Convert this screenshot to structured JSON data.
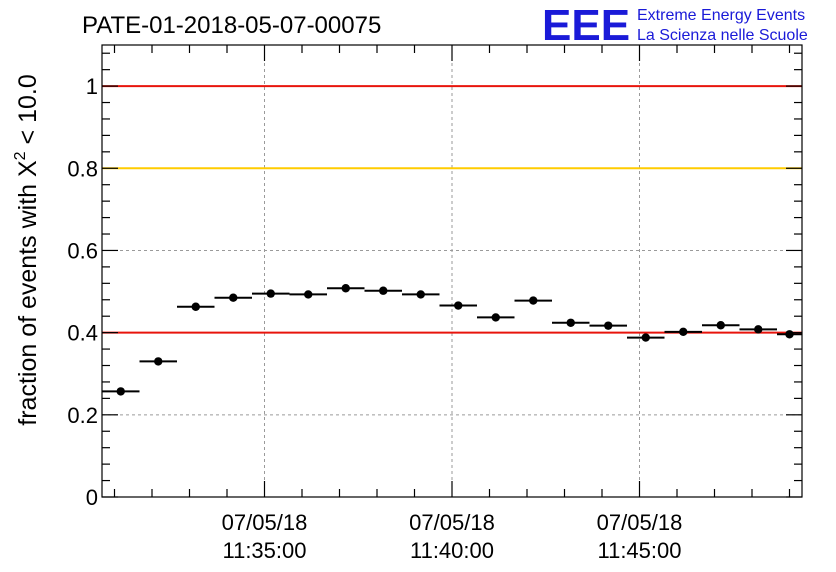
{
  "header": {
    "title": "PATE-01-2018-05-07-00075",
    "logo_letters": "EEE",
    "logo_line1": "Extreme Energy Events",
    "logo_line2": "La Scienza nelle Scuole"
  },
  "colors": {
    "accent_red": "#e8140c",
    "accent_gold": "#ffcc00",
    "logo_blue": "#1a1ad8",
    "marker": "#000000"
  },
  "chart_data": {
    "type": "scatter",
    "title": "PATE-01-2018-05-07-00075",
    "ylabel": "fraction of events with X",
    "ylabel_sup": "2",
    "ylabel_suffix": " < 10.0",
    "ylim": [
      0,
      1.1
    ],
    "yticks": [
      {
        "value": 0,
        "label": "0"
      },
      {
        "value": 0.2,
        "label": "0.2"
      },
      {
        "value": 0.4,
        "label": "0.4"
      },
      {
        "value": 0.6,
        "label": "0.6"
      },
      {
        "value": 0.8,
        "label": "0.8"
      },
      {
        "value": 1,
        "label": "1"
      }
    ],
    "xlim": [
      "11:30:40",
      "11:49:20"
    ],
    "xticks": [
      {
        "time": "11:35:00",
        "date_label": "07/05/18",
        "time_label": "11:35:00"
      },
      {
        "time": "11:40:00",
        "date_label": "07/05/18",
        "time_label": "11:40:00"
      },
      {
        "time": "11:45:00",
        "date_label": "07/05/18",
        "time_label": "11:45:00"
      }
    ],
    "grid": true,
    "reference_lines": [
      {
        "y": 1.0,
        "color": "#e8140c"
      },
      {
        "y": 0.8,
        "color": "#ffcc00"
      },
      {
        "y": 0.4,
        "color": "#e8140c"
      }
    ],
    "points": [
      {
        "x_start": "11:30:40",
        "x_end": "11:31:40",
        "y": 0.257
      },
      {
        "x_start": "11:31:40",
        "x_end": "11:32:40",
        "y": 0.33
      },
      {
        "x_start": "11:32:40",
        "x_end": "11:33:40",
        "y": 0.463
      },
      {
        "x_start": "11:33:40",
        "x_end": "11:34:40",
        "y": 0.485
      },
      {
        "x_start": "11:34:40",
        "x_end": "11:35:40",
        "y": 0.495
      },
      {
        "x_start": "11:35:40",
        "x_end": "11:36:40",
        "y": 0.493
      },
      {
        "x_start": "11:36:40",
        "x_end": "11:37:40",
        "y": 0.508
      },
      {
        "x_start": "11:37:40",
        "x_end": "11:38:40",
        "y": 0.502
      },
      {
        "x_start": "11:38:40",
        "x_end": "11:39:40",
        "y": 0.493
      },
      {
        "x_start": "11:39:40",
        "x_end": "11:40:40",
        "y": 0.466
      },
      {
        "x_start": "11:40:40",
        "x_end": "11:41:40",
        "y": 0.437
      },
      {
        "x_start": "11:41:40",
        "x_end": "11:42:40",
        "y": 0.478
      },
      {
        "x_start": "11:42:40",
        "x_end": "11:43:40",
        "y": 0.424
      },
      {
        "x_start": "11:43:40",
        "x_end": "11:44:40",
        "y": 0.417
      },
      {
        "x_start": "11:44:40",
        "x_end": "11:45:40",
        "y": 0.388
      },
      {
        "x_start": "11:45:40",
        "x_end": "11:46:40",
        "y": 0.402
      },
      {
        "x_start": "11:46:40",
        "x_end": "11:47:40",
        "y": 0.418
      },
      {
        "x_start": "11:47:40",
        "x_end": "11:48:40",
        "y": 0.408
      },
      {
        "x_start": "11:48:40",
        "x_end": "11:49:20",
        "y": 0.396
      }
    ]
  }
}
